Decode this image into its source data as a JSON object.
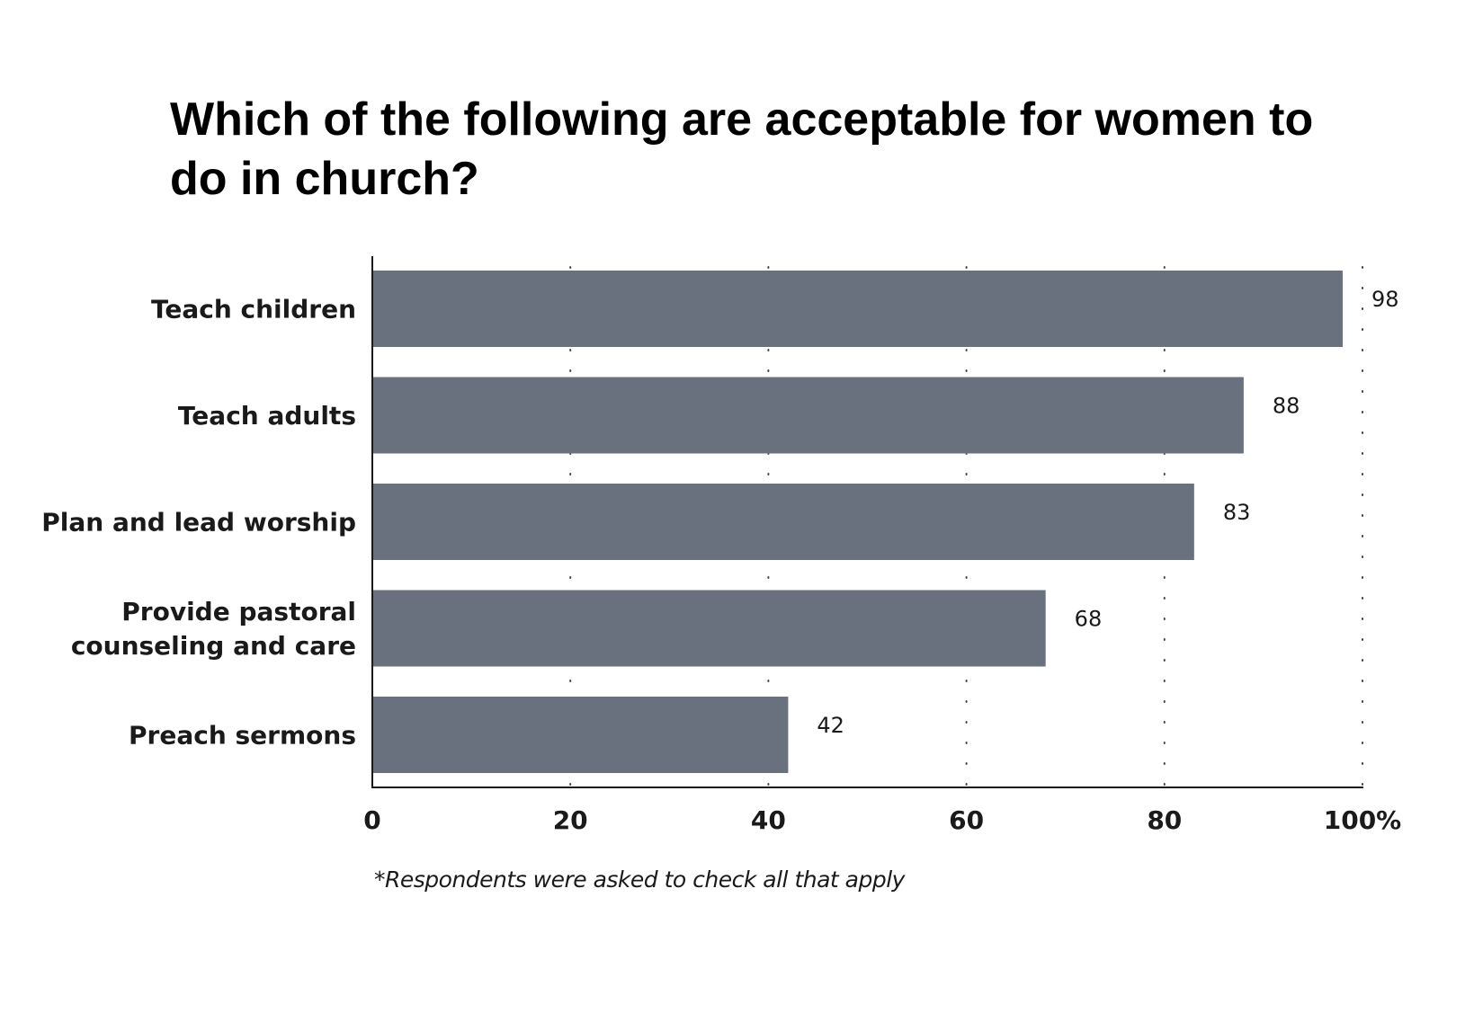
{
  "chart_data": {
    "type": "bar",
    "orientation": "horizontal",
    "title": "Which of the following are acceptable for women to do in church?",
    "categories": [
      [
        "Teach children"
      ],
      [
        "Teach adults"
      ],
      [
        "Plan and lead worship"
      ],
      [
        "Provide pastoral",
        "counseling and care"
      ],
      [
        "Preach sermons"
      ]
    ],
    "values": [
      98,
      88,
      83,
      68,
      42
    ],
    "value_labels": [
      "98",
      "88",
      "83",
      "68",
      "42"
    ],
    "xlim": [
      0,
      100
    ],
    "xticks": [
      0,
      20,
      40,
      60,
      80,
      100
    ],
    "xtick_labels": [
      "0",
      "20",
      "40",
      "60",
      "80",
      "100%"
    ],
    "grid": "vertical dotted",
    "bar_color": "#69717f",
    "footnote": "*Respondents were asked to check all that apply"
  }
}
